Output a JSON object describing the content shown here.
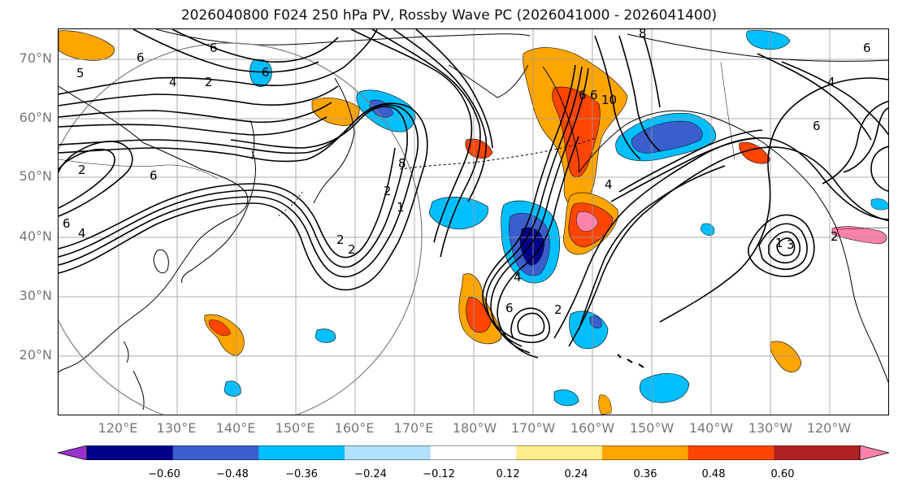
{
  "title": "2026040800 F024 250 hPa PV, Rossby Wave PC (2026041000 - 2026041400)",
  "axes": {
    "lat_labels": [
      "70°N",
      "60°N",
      "50°N",
      "40°N",
      "30°N",
      "20°N"
    ],
    "lon_labels": [
      "120°E",
      "130°E",
      "140°E",
      "150°E",
      "160°E",
      "170°E",
      "180°W",
      "170°W",
      "160°W",
      "150°W",
      "140°W",
      "130°W",
      "120°W"
    ]
  },
  "colorbar": {
    "ticks": [
      "−0.60",
      "−0.48",
      "−0.36",
      "−0.24",
      "−0.12",
      "0.12",
      "0.24",
      "0.36",
      "0.48",
      "0.60"
    ],
    "colors": [
      "#9932CC",
      "#00008B",
      "#3A5FCD",
      "#00BFFF",
      "#B0E2FF",
      "#FFFFFF",
      "#FFEC8B",
      "#FFA500",
      "#FF4500",
      "#B22222",
      "#FF82AB"
    ]
  },
  "contour_labels": [
    "5",
    "6",
    "6",
    "4",
    "6",
    "2",
    "2",
    "6",
    "4",
    "6",
    "8",
    "8",
    "4",
    "2",
    "1",
    "2",
    "2",
    "10",
    "6",
    "6",
    "4",
    "2",
    "3",
    "1",
    "6",
    "4",
    "6",
    "2",
    "6"
  ],
  "chart_data": {
    "type": "map",
    "title": "2026040800 F024 250 hPa PV, Rossby Wave PC (2026041000 - 2026041400)",
    "lat_ticks": [
      70,
      60,
      50,
      40,
      30,
      20
    ],
    "lon_ticks": [
      "120°E",
      "130°E",
      "140°E",
      "150°E",
      "160°E",
      "170°E",
      "180°W",
      "170°W",
      "160°W",
      "150°W",
      "140°W",
      "130°W",
      "120°W"
    ],
    "colorbar_levels": [
      -0.6,
      -0.48,
      -0.36,
      -0.24,
      -0.12,
      0.12,
      0.24,
      0.36,
      0.48,
      0.6
    ],
    "extend": "both",
    "grid": true
  }
}
